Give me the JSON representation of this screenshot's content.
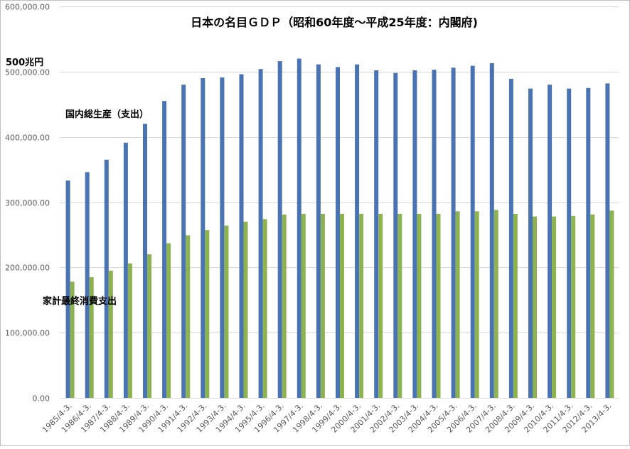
{
  "chart_data": {
    "type": "bar",
    "title": "日本の名目ＧＤＰ（昭和60年度～平成25年度：内閣府)",
    "xlabel": "",
    "ylabel": "",
    "ylim": [
      0,
      600000
    ],
    "y_ticks": [
      "0.00",
      "100,000.00",
      "200,000.00",
      "300,000.00",
      "400,000.00",
      "500,000.00",
      "600,000.00"
    ],
    "grid": true,
    "categories": [
      "1985/4-3.",
      "1986/4-3.",
      "1987/4-3.",
      "1988/4-3.",
      "1989/4-3.",
      "1990/4-3.",
      "1991/4-3.",
      "1992/4-3.",
      "1993/4-3.",
      "1994/4-3.",
      "1995/4-3.",
      "1996/4-3.",
      "1997/4-3.",
      "1998/4-3.",
      "1999/4-3.",
      "2000/4-3.",
      "2001/4-3.",
      "2002/4-3.",
      "2003/4-3.",
      "2004/4-3.",
      "2005/4-3.",
      "2006/4-3.",
      "2007/4-3.",
      "2008/4-3.",
      "2009/4-3.",
      "2010/4-3.",
      "2011/4-3.",
      "2012/4-3.",
      "2013/4-3."
    ],
    "series": [
      {
        "name": "国内総生産（支出）",
        "color": "#4a73b4",
        "values": [
          333000,
          346000,
          365000,
          391000,
          420000,
          455000,
          480000,
          490000,
          491000,
          496000,
          504000,
          516000,
          520000,
          511000,
          507000,
          511000,
          502000,
          498000,
          502000,
          503000,
          506000,
          509000,
          513000,
          489000,
          474000,
          480000,
          474000,
          475000,
          482000
        ]
      },
      {
        "name": "家計最終消費支出",
        "color": "#8db351",
        "values": [
          178000,
          185000,
          195000,
          206000,
          220000,
          237000,
          249000,
          257000,
          264000,
          270000,
          274000,
          281000,
          282000,
          282000,
          282000,
          282000,
          282000,
          282000,
          282000,
          282000,
          286000,
          286000,
          288000,
          282000,
          278000,
          278000,
          279000,
          281000,
          287000
        ]
      }
    ],
    "annotations": [
      "500兆円"
    ]
  }
}
